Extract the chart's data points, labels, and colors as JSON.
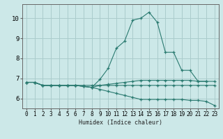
{
  "xlabel": "Humidex (Indice chaleur)",
  "ylabel": "",
  "bg_color": "#cce8e8",
  "grid_color": "#aacccc",
  "line_color": "#2a7a70",
  "xlim": [
    -0.5,
    23.5
  ],
  "ylim": [
    5.5,
    10.7
  ],
  "xticks": [
    0,
    1,
    2,
    3,
    4,
    5,
    6,
    7,
    8,
    9,
    10,
    11,
    12,
    13,
    14,
    15,
    16,
    17,
    18,
    19,
    20,
    21,
    22,
    23
  ],
  "yticks": [
    6,
    7,
    8,
    9,
    10
  ],
  "series": [
    {
      "x": [
        0,
        1,
        2,
        3,
        4,
        5,
        6,
        7,
        8,
        9,
        10,
        11,
        12,
        13,
        14,
        15,
        16,
        17,
        18,
        19,
        20,
        21,
        22
      ],
      "y": [
        6.8,
        6.8,
        6.65,
        6.65,
        6.65,
        6.65,
        6.65,
        6.6,
        6.55,
        6.95,
        7.5,
        8.5,
        8.85,
        9.9,
        10.0,
        10.3,
        9.8,
        8.3,
        8.3,
        7.4,
        7.4,
        6.85,
        6.85
      ]
    },
    {
      "x": [
        0,
        1,
        2,
        3,
        4,
        5,
        6,
        7,
        8,
        9,
        10,
        11,
        12,
        13,
        14,
        15,
        16,
        17,
        18,
        19,
        20,
        21,
        22,
        23
      ],
      "y": [
        6.8,
        6.8,
        6.65,
        6.65,
        6.65,
        6.65,
        6.65,
        6.6,
        6.55,
        6.65,
        6.7,
        6.75,
        6.8,
        6.85,
        6.9,
        6.9,
        6.9,
        6.9,
        6.9,
        6.9,
        6.9,
        6.85,
        6.85,
        6.85
      ]
    },
    {
      "x": [
        0,
        1,
        2,
        3,
        4,
        5,
        6,
        7,
        8,
        9,
        10,
        11,
        12,
        13,
        14,
        15,
        16,
        17,
        18,
        19,
        20,
        21,
        22,
        23
      ],
      "y": [
        6.8,
        6.8,
        6.65,
        6.65,
        6.65,
        6.65,
        6.65,
        6.6,
        6.55,
        6.45,
        6.35,
        6.25,
        6.15,
        6.05,
        5.95,
        5.95,
        5.95,
        5.95,
        5.95,
        5.95,
        5.9,
        5.9,
        5.85,
        5.65
      ]
    },
    {
      "x": [
        0,
        1,
        2,
        3,
        4,
        5,
        6,
        7,
        8,
        9,
        10,
        11,
        12,
        13,
        14,
        15,
        16,
        17,
        18,
        19,
        20,
        21,
        22,
        23
      ],
      "y": [
        6.8,
        6.8,
        6.65,
        6.65,
        6.65,
        6.65,
        6.65,
        6.65,
        6.65,
        6.65,
        6.65,
        6.65,
        6.65,
        6.65,
        6.65,
        6.65,
        6.65,
        6.65,
        6.65,
        6.65,
        6.65,
        6.65,
        6.65,
        6.65
      ]
    }
  ]
}
